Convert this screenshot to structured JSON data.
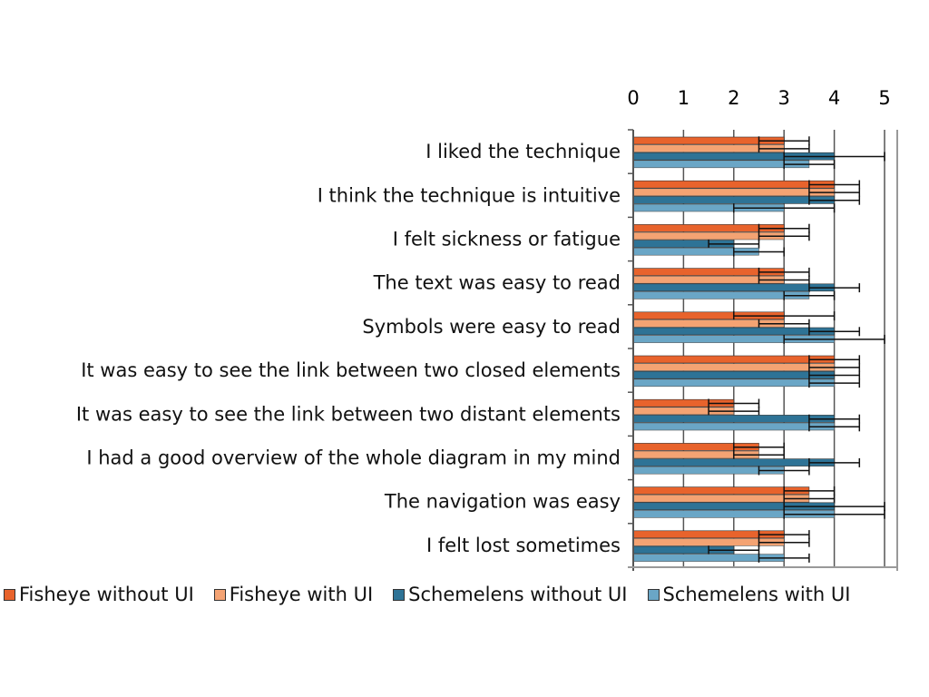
{
  "chart_data": {
    "type": "bar",
    "orientation": "horizontal",
    "xlim": [
      0,
      5
    ],
    "ticks": [
      "0",
      "1",
      "2",
      "3",
      "4",
      "5"
    ],
    "grid": true,
    "legend_position": "bottom",
    "categories": [
      "I liked the technique",
      "I think the technique is intuitive",
      "I felt sickness or fatigue",
      "The text was easy to read",
      "Symbols were easy to read",
      "It was easy to see the link between two closed elements",
      "It was easy to see the link between two distant elements",
      "I had a good overview of the whole diagram in my mind",
      "The navigation was easy",
      "I felt lost sometimes"
    ],
    "series": [
      {
        "name": "Fisheye without UI",
        "color": "#e8632c",
        "values": [
          3,
          4,
          3,
          3,
          3,
          4,
          2,
          2.5,
          3.5,
          3
        ],
        "errors": [
          0.5,
          0.5,
          0.5,
          0.5,
          1,
          0.5,
          0.5,
          0.5,
          0.5,
          0.5
        ]
      },
      {
        "name": "Fisheye with UI",
        "color": "#f4a373",
        "values": [
          3,
          4,
          3,
          3,
          3,
          4,
          2,
          2.5,
          3.5,
          3
        ],
        "errors": [
          0.5,
          0.5,
          0.5,
          0.5,
          0.5,
          0.5,
          0.5,
          0.5,
          0.5,
          0.5
        ]
      },
      {
        "name": "Schemelens without UI",
        "color": "#2e7396",
        "values": [
          4,
          4,
          2,
          4,
          4,
          4,
          4,
          4,
          4,
          2
        ],
        "errors": [
          1,
          0.5,
          0.5,
          0.5,
          0.5,
          0.5,
          0.5,
          0.5,
          1,
          0.5
        ]
      },
      {
        "name": "Schemelens with UI",
        "color": "#6aa6c6",
        "values": [
          3.5,
          3,
          2.5,
          3.5,
          4,
          4,
          4,
          3,
          4,
          3
        ],
        "errors": [
          0.5,
          1,
          0.5,
          0.5,
          1,
          0.5,
          0.5,
          0.5,
          1,
          0.5
        ]
      }
    ]
  }
}
